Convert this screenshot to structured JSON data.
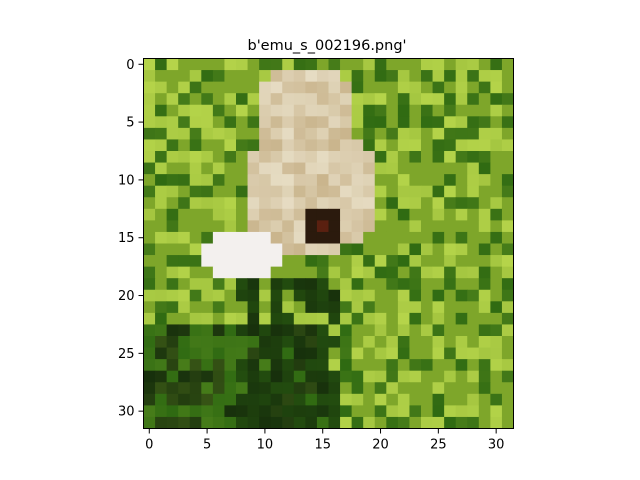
{
  "figure": {
    "title": "b'emu_s_002196.png'"
  },
  "image": {
    "description_name": "emu-close-up-thumbnail",
    "grid_size": [
      32,
      32
    ],
    "palette": {
      "grass_light": "#b5d44a",
      "grass_mid": "#7ea62a",
      "grass_dark": "#2f6a12",
      "shadow": "#17300c",
      "feather_tan": "#c9b48c",
      "feather_light": "#e6dcc3",
      "beak_white": "#f3f0ee",
      "eye_dark": "#2b1a0d"
    }
  },
  "axes": {
    "x_ticks": [
      "0",
      "5",
      "10",
      "15",
      "20",
      "25",
      "30"
    ],
    "y_ticks": [
      "0",
      "5",
      "10",
      "15",
      "20",
      "25",
      "30"
    ],
    "x_range": [
      -0.5,
      31.5
    ],
    "y_range": [
      -0.5,
      31.5
    ]
  }
}
